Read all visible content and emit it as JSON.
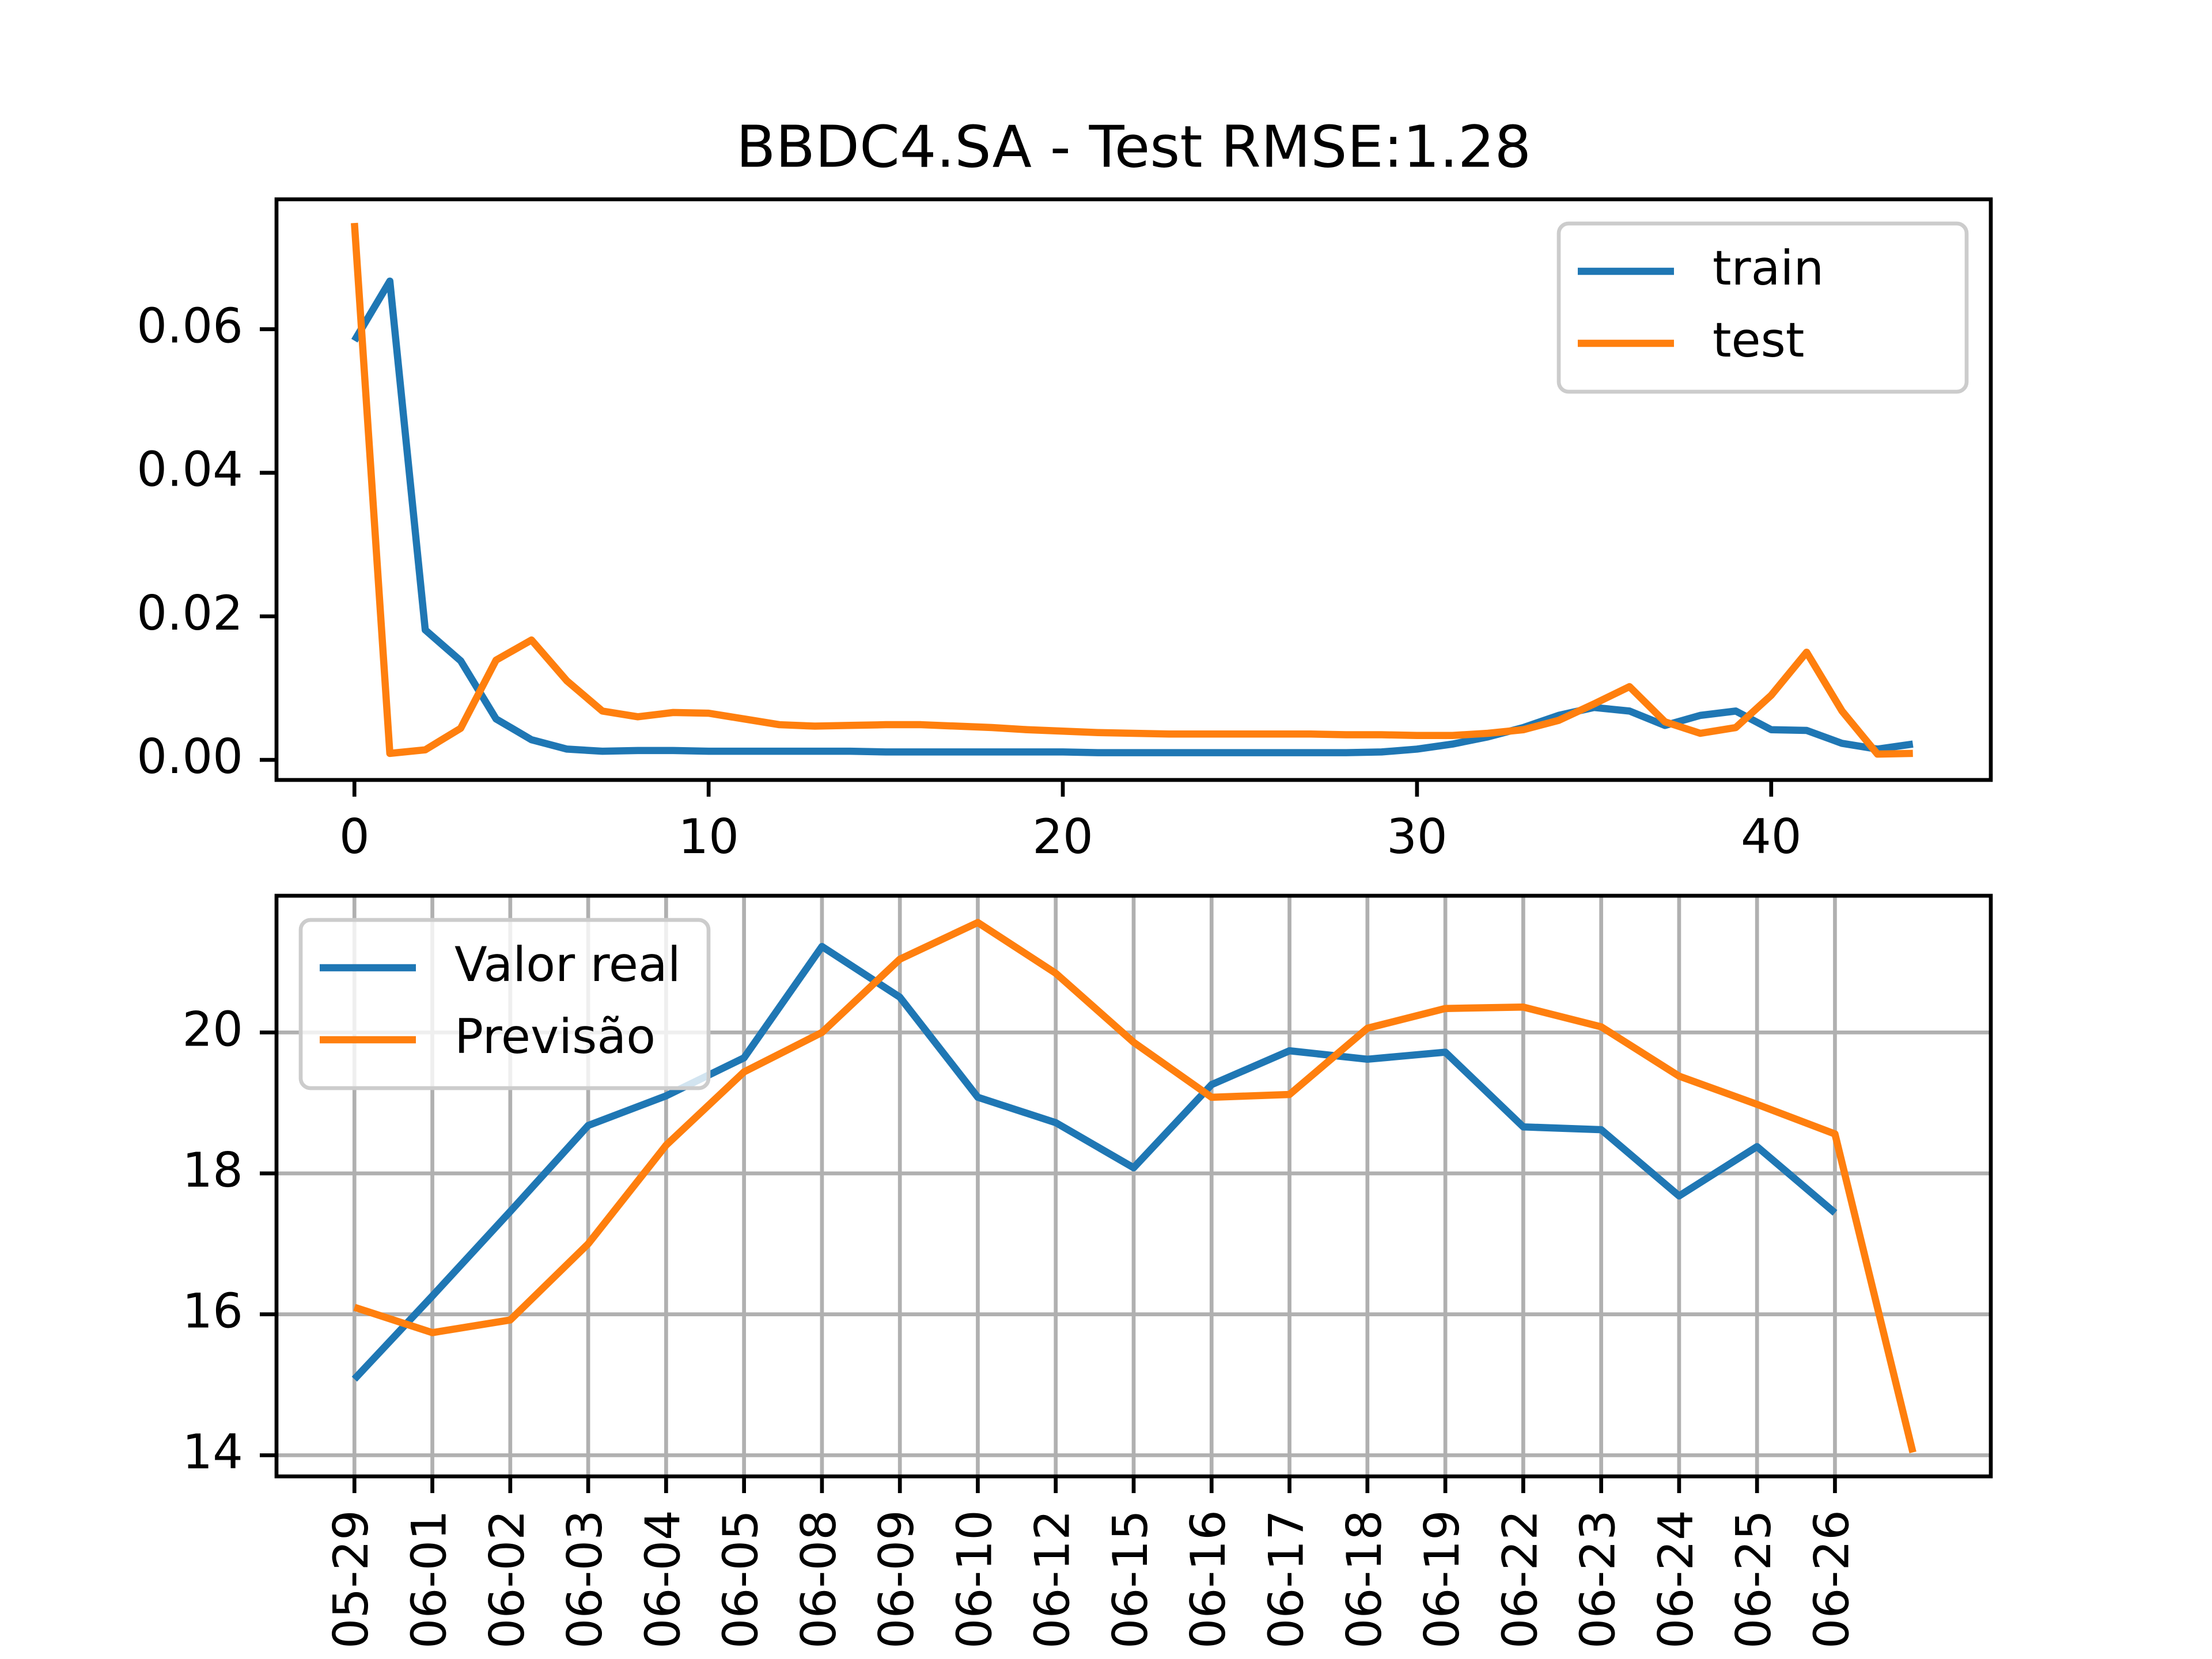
{
  "chart_data": [
    {
      "type": "line",
      "title": "BBDC4.SA - Test RMSE:1.28",
      "x": [
        0,
        1,
        2,
        3,
        4,
        5,
        6,
        7,
        8,
        9,
        10,
        11,
        12,
        13,
        14,
        15,
        16,
        17,
        18,
        19,
        20,
        21,
        22,
        23,
        24,
        25,
        26,
        27,
        28,
        29,
        30,
        31,
        32,
        33,
        34,
        35,
        36,
        37,
        38,
        39,
        40,
        41,
        42,
        43,
        44
      ],
      "series": [
        {
          "name": "train",
          "color": "#1f77b4",
          "values": [
            0.0584,
            0.0667,
            0.0181,
            0.0138,
            0.0057,
            0.0028,
            0.0015,
            0.0012,
            0.0013,
            0.0013,
            0.0012,
            0.0012,
            0.0012,
            0.0012,
            0.0012,
            0.0011,
            0.0011,
            0.0011,
            0.0011,
            0.0011,
            0.0011,
            0.001,
            0.001,
            0.001,
            0.001,
            0.001,
            0.001,
            0.001,
            0.001,
            0.0011,
            0.0015,
            0.0022,
            0.0032,
            0.0045,
            0.0062,
            0.0073,
            0.0068,
            0.0048,
            0.0062,
            0.0068,
            0.0042,
            0.0041,
            0.0023,
            0.0015,
            0.0022
          ]
        },
        {
          "name": "test",
          "color": "#ff7f0e",
          "values": [
            0.0748,
            0.0009,
            0.0014,
            0.0044,
            0.0139,
            0.0167,
            0.011,
            0.0068,
            0.006,
            0.0066,
            0.0065,
            0.0057,
            0.0049,
            0.0047,
            0.0048,
            0.0049,
            0.0049,
            0.0047,
            0.0045,
            0.0042,
            0.004,
            0.0038,
            0.0037,
            0.0036,
            0.0036,
            0.0036,
            0.0036,
            0.0036,
            0.0035,
            0.0035,
            0.0034,
            0.0034,
            0.0037,
            0.0042,
            0.0055,
            0.0078,
            0.0102,
            0.0053,
            0.0037,
            0.0045,
            0.009,
            0.015,
            0.0068,
            0.0008,
            0.0009
          ]
        }
      ],
      "xlim": [
        -2.2,
        46.2
      ],
      "xticks": [
        0,
        10,
        20,
        30,
        40
      ],
      "ylim": [
        -0.0028,
        0.0781
      ],
      "yticks": [
        {
          "value": 0,
          "label": "0.00"
        },
        {
          "value": 0.02,
          "label": "0.02"
        },
        {
          "value": 0.04,
          "label": "0.04"
        },
        {
          "value": 0.06,
          "label": "0.06"
        }
      ],
      "grid": false,
      "legend": "upper right"
    },
    {
      "type": "line",
      "categories": [
        "05-29",
        "06-01",
        "06-02",
        "06-03",
        "06-04",
        "06-05",
        "06-08",
        "06-09",
        "06-10",
        "06-12",
        "06-15",
        "06-16",
        "06-17",
        "06-18",
        "06-19",
        "06-22",
        "06-23",
        "06-24",
        "06-25",
        "06-26",
        null
      ],
      "series": [
        {
          "name": "Valor real",
          "color": "#1f77b4",
          "values": [
            15.08,
            16.26,
            17.46,
            18.68,
            19.1,
            19.64,
            21.22,
            20.5,
            19.08,
            18.72,
            18.08,
            19.26,
            19.74,
            19.62,
            19.72,
            18.66,
            18.62,
            17.68,
            18.38,
            17.44,
            null
          ]
        },
        {
          "name": "Previsão",
          "color": "#ff7f0e",
          "values": [
            16.1,
            15.74,
            15.92,
            17.0,
            18.4,
            19.44,
            20.0,
            21.04,
            21.56,
            20.84,
            19.86,
            19.08,
            19.12,
            20.06,
            20.34,
            20.36,
            20.08,
            19.38,
            18.98,
            18.56,
            14.04
          ]
        }
      ],
      "ylim": [
        13.7,
        21.94
      ],
      "yticks": [
        14,
        16,
        18,
        20
      ],
      "grid": true,
      "legend": "upper left"
    }
  ]
}
